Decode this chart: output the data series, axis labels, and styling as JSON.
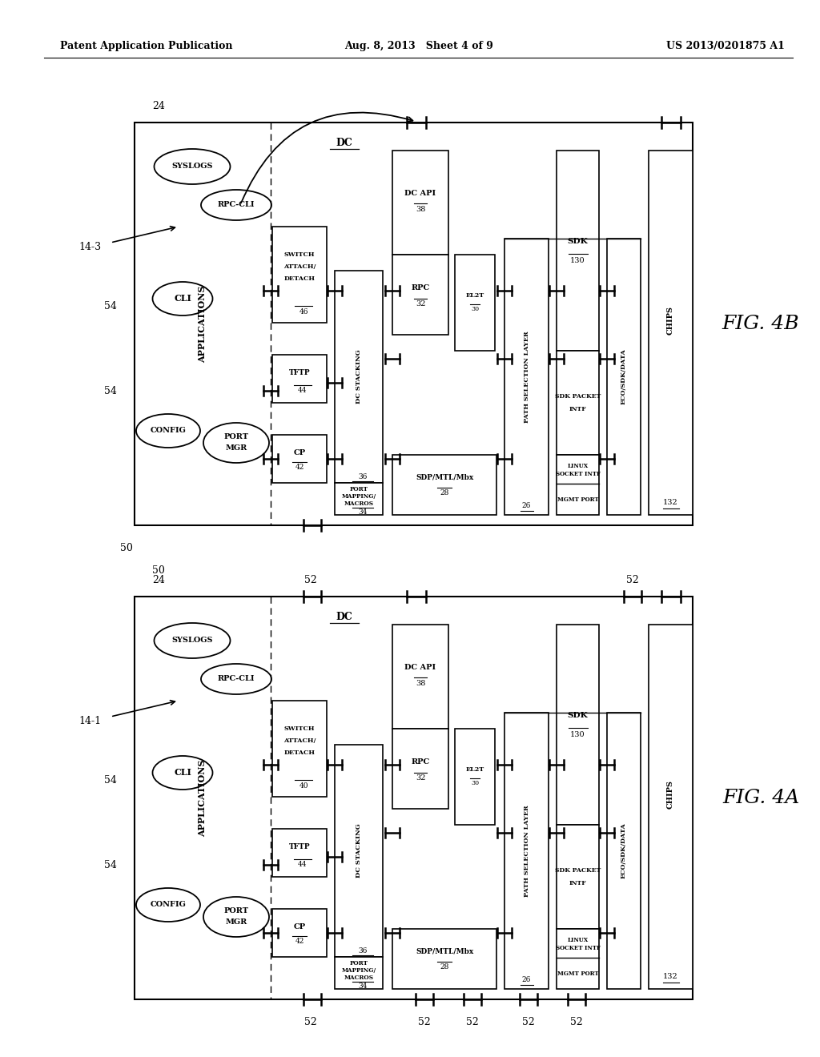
{
  "header_left": "Patent Application Publication",
  "header_center": "Aug. 8, 2013   Sheet 4 of 9",
  "header_right": "US 2013/0201875 A1",
  "background_color": "#ffffff",
  "line_color": "#000000"
}
